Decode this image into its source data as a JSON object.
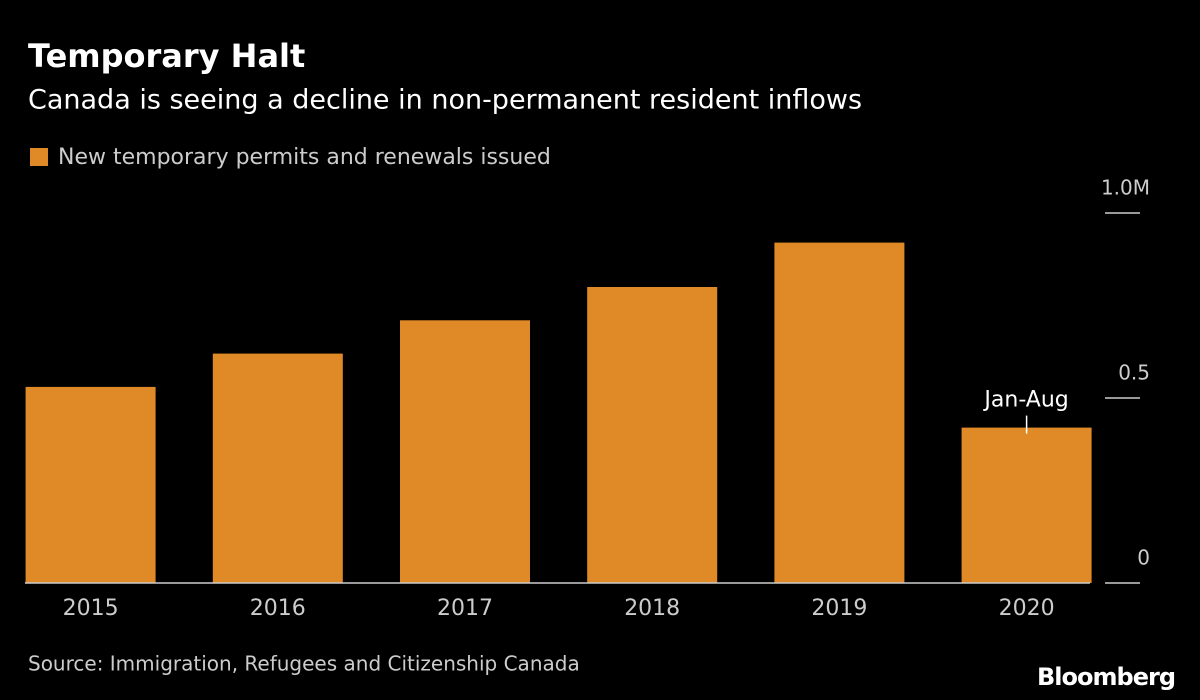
{
  "chart_data": {
    "type": "bar",
    "title": "Temporary Halt",
    "subtitle": "Canada is seeing a decline in non-permanent resident inflows",
    "series": [
      {
        "name": "New temporary permits and renewals issued",
        "color": "#e08a27",
        "values": [
          0.53,
          0.62,
          0.71,
          0.8,
          0.92,
          0.42
        ]
      }
    ],
    "categories": [
      "2015",
      "2016",
      "2017",
      "2018",
      "2019",
      "2020"
    ],
    "ylim": [
      0,
      1
    ],
    "yticks": [
      0,
      0.5,
      {
        "value": 1,
        "label": "1.0M"
      }
    ],
    "annotation": "Jan-Aug",
    "source": "Source: Immigration, Refugees and Citizenship Canada",
    "brand": "Bloomberg"
  }
}
